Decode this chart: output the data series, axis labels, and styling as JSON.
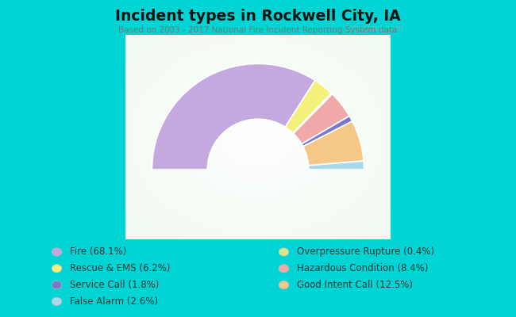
{
  "title": "Incident types in Rockwell City, IA",
  "subtitle": "Based on 2003 - 2017 National Fire Incident Reporting System data",
  "background_outer": "#00d4d4",
  "slices": [
    {
      "label": "Fire (68.1%)",
      "value": 68.1,
      "color": "#c4a8e0"
    },
    {
      "label": "Rescue & EMS (6.2%)",
      "value": 6.2,
      "color": "#f5f07a"
    },
    {
      "label": "Overpressure Rupture (0.4%)",
      "value": 0.4,
      "color": "#d8e88a"
    },
    {
      "label": "Hazardous Condition (8.4%)",
      "value": 8.4,
      "color": "#f0a8a8"
    },
    {
      "label": "Service Call (1.8%)",
      "value": 1.8,
      "color": "#7878cc"
    },
    {
      "label": "Good Intent Call (12.5%)",
      "value": 12.5,
      "color": "#f5c888"
    },
    {
      "label": "False Alarm (2.6%)",
      "value": 2.6,
      "color": "#a8d8ee"
    }
  ],
  "legend_items_left": [
    {
      "label": "Fire (68.1%)",
      "color": "#c4a8e0"
    },
    {
      "label": "Rescue & EMS (6.2%)",
      "color": "#f5f07a"
    },
    {
      "label": "Service Call (1.8%)",
      "color": "#7878cc"
    },
    {
      "label": "False Alarm (2.6%)",
      "color": "#a8d8ee"
    }
  ],
  "legend_items_right": [
    {
      "label": "Overpressure Rupture (0.4%)",
      "color": "#d8e88a"
    },
    {
      "label": "Hazardous Condition (8.4%)",
      "color": "#f0a8a8"
    },
    {
      "label": "Good Intent Call (12.5%)",
      "color": "#f5c888"
    }
  ]
}
